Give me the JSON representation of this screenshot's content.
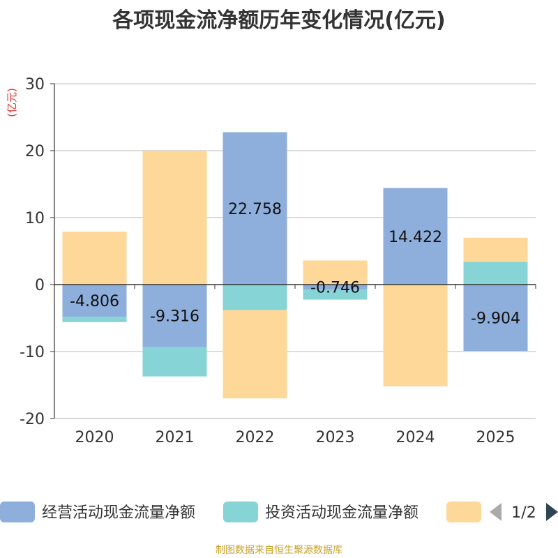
{
  "chart_data": {
    "type": "bar",
    "stacked": true,
    "title": "各项现金流净额历年变化情况(亿元)",
    "ylabel": "(亿元)",
    "xlabel": "",
    "categories": [
      "2020",
      "2021",
      "2022",
      "2023",
      "2024",
      "2025"
    ],
    "ylim": [
      -20,
      30
    ],
    "yticks": [
      -20,
      -10,
      0,
      10,
      20,
      30
    ],
    "grid": true,
    "series": [
      {
        "name": "经营活动现金流量净额",
        "color": "#8eaedb",
        "values": [
          -4.806,
          -9.316,
          22.758,
          -0.746,
          14.422,
          -9.904
        ],
        "labels": [
          "-4.806",
          "-9.316",
          "22.758",
          "-0.746",
          "14.422",
          "-9.904"
        ]
      },
      {
        "name": "投资活动现金流量净额",
        "color": "#86d4d6",
        "values": [
          -0.8,
          -4.4,
          -3.8,
          -1.5,
          0,
          3.4
        ]
      },
      {
        "name": "",
        "color": "#fed898",
        "values": [
          7.9,
          20.0,
          -13.2,
          3.6,
          -15.2,
          3.6
        ]
      }
    ],
    "legend": {
      "position": "bottom",
      "page": "1/2"
    }
  },
  "footer": {
    "source": "制图数据来自恒生聚源数据库"
  }
}
